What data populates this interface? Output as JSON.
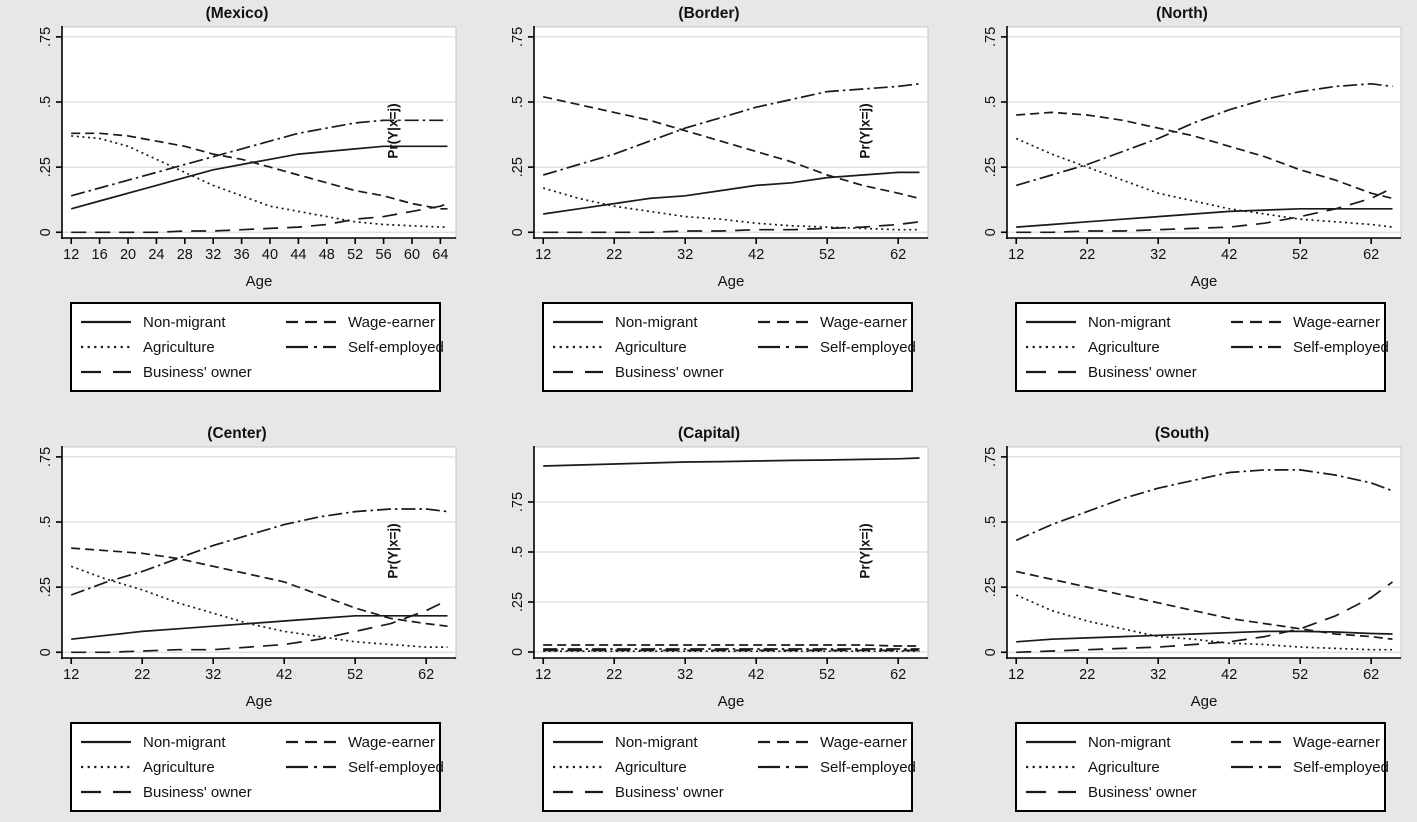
{
  "figure": {
    "background": "#e7e7e7",
    "plot_background": "#ffffff",
    "grid_color": "#dcdcdc",
    "plot_border_color": "#c4c4c4",
    "axis_color": "#000000",
    "line_color": "#1a1a1a",
    "inner_ylabel": "Pr(Y|x=j)",
    "xlabel": "Age"
  },
  "legend": {
    "items": [
      {
        "label": "Non-migrant",
        "style": "solid"
      },
      {
        "label": "Wage-earner",
        "style": "dash"
      },
      {
        "label": "Agriculture",
        "style": "dotted"
      },
      {
        "label": "Self-employed",
        "style": "dashdot"
      },
      {
        "label": "Business' owner",
        "style": "longdash"
      }
    ]
  },
  "chart_data": [
    {
      "type": "line",
      "title": "(Mexico)",
      "xlabel": "Age",
      "x_ticks": [
        12,
        16,
        20,
        24,
        28,
        32,
        36,
        40,
        44,
        48,
        52,
        56,
        60,
        64
      ],
      "xlim": [
        10.7,
        66.2
      ],
      "ylim": [
        -0.022,
        0.788
      ],
      "y_tick_values": [
        0,
        0.25,
        0.5,
        0.75
      ],
      "y_tick_labels": [
        "0",
        ".25",
        ".5",
        ".75"
      ],
      "grid": true,
      "legend_position": "below",
      "show_inner_ylabel": true,
      "x": [
        12,
        16,
        20,
        24,
        28,
        32,
        36,
        40,
        44,
        48,
        52,
        56,
        60,
        64,
        65
      ],
      "series": [
        {
          "name": "Non-migrant",
          "style": "solid",
          "values": [
            0.09,
            0.12,
            0.15,
            0.18,
            0.21,
            0.24,
            0.26,
            0.28,
            0.3,
            0.31,
            0.32,
            0.33,
            0.33,
            0.33,
            0.33
          ]
        },
        {
          "name": "Agriculture",
          "style": "dotted",
          "values": [
            0.37,
            0.36,
            0.33,
            0.28,
            0.23,
            0.18,
            0.14,
            0.1,
            0.08,
            0.06,
            0.04,
            0.03,
            0.025,
            0.02,
            0.02
          ]
        },
        {
          "name": "Business' owner",
          "style": "longdash",
          "values": [
            0.0,
            0.0,
            0.0,
            0.0,
            0.005,
            0.005,
            0.01,
            0.015,
            0.02,
            0.03,
            0.05,
            0.06,
            0.08,
            0.1,
            0.11
          ]
        },
        {
          "name": "Wage-earner",
          "style": "dash",
          "values": [
            0.38,
            0.38,
            0.37,
            0.35,
            0.33,
            0.3,
            0.28,
            0.25,
            0.22,
            0.19,
            0.16,
            0.14,
            0.11,
            0.09,
            0.09
          ]
        },
        {
          "name": "Self-employed",
          "style": "dashdot",
          "values": [
            0.14,
            0.17,
            0.2,
            0.23,
            0.26,
            0.29,
            0.32,
            0.35,
            0.38,
            0.4,
            0.42,
            0.43,
            0.43,
            0.43,
            0.43
          ]
        }
      ]
    },
    {
      "type": "line",
      "title": "(Border)",
      "xlabel": "Age",
      "x_ticks": [
        12,
        22,
        32,
        42,
        52,
        62
      ],
      "xlim": [
        10.7,
        66.2
      ],
      "ylim": [
        -0.022,
        0.788
      ],
      "y_tick_values": [
        0,
        0.25,
        0.5,
        0.75
      ],
      "y_tick_labels": [
        "0",
        ".25",
        ".5",
        ".75"
      ],
      "grid": true,
      "legend_position": "below",
      "show_inner_ylabel": true,
      "x": [
        12,
        17,
        22,
        27,
        32,
        37,
        42,
        47,
        52,
        57,
        62,
        65
      ],
      "series": [
        {
          "name": "Non-migrant",
          "style": "solid",
          "values": [
            0.07,
            0.09,
            0.11,
            0.13,
            0.14,
            0.16,
            0.18,
            0.19,
            0.21,
            0.22,
            0.23,
            0.23
          ]
        },
        {
          "name": "Agriculture",
          "style": "dotted",
          "values": [
            0.17,
            0.13,
            0.1,
            0.08,
            0.06,
            0.05,
            0.035,
            0.025,
            0.02,
            0.015,
            0.01,
            0.01
          ]
        },
        {
          "name": "Business' owner",
          "style": "longdash",
          "values": [
            0.0,
            0.0,
            0.0,
            0.0,
            0.005,
            0.005,
            0.01,
            0.01,
            0.015,
            0.02,
            0.03,
            0.04
          ]
        },
        {
          "name": "Wage-earner",
          "style": "dash",
          "values": [
            0.52,
            0.49,
            0.46,
            0.43,
            0.39,
            0.35,
            0.31,
            0.27,
            0.22,
            0.18,
            0.15,
            0.13
          ]
        },
        {
          "name": "Self-employed",
          "style": "dashdot",
          "values": [
            0.22,
            0.26,
            0.3,
            0.35,
            0.4,
            0.44,
            0.48,
            0.51,
            0.54,
            0.55,
            0.56,
            0.57
          ]
        }
      ]
    },
    {
      "type": "line",
      "title": "(North)",
      "xlabel": "Age",
      "x_ticks": [
        12,
        22,
        32,
        42,
        52,
        62
      ],
      "xlim": [
        10.7,
        66.2
      ],
      "ylim": [
        -0.022,
        0.788
      ],
      "y_tick_values": [
        0,
        0.25,
        0.5,
        0.75
      ],
      "y_tick_labels": [
        "0",
        ".25",
        ".5",
        ".75"
      ],
      "grid": true,
      "legend_position": "below",
      "show_inner_ylabel": false,
      "x": [
        12,
        17,
        22,
        27,
        32,
        37,
        42,
        47,
        52,
        57,
        62,
        65
      ],
      "series": [
        {
          "name": "Non-migrant",
          "style": "solid",
          "values": [
            0.02,
            0.03,
            0.04,
            0.05,
            0.06,
            0.07,
            0.08,
            0.085,
            0.09,
            0.09,
            0.09,
            0.09
          ]
        },
        {
          "name": "Agriculture",
          "style": "dotted",
          "values": [
            0.36,
            0.3,
            0.25,
            0.2,
            0.15,
            0.12,
            0.09,
            0.07,
            0.05,
            0.04,
            0.03,
            0.02
          ]
        },
        {
          "name": "Business' owner",
          "style": "longdash",
          "values": [
            0.0,
            0.0,
            0.005,
            0.005,
            0.01,
            0.015,
            0.02,
            0.035,
            0.06,
            0.09,
            0.13,
            0.17
          ]
        },
        {
          "name": "Wage-earner",
          "style": "dash",
          "values": [
            0.45,
            0.46,
            0.45,
            0.43,
            0.4,
            0.37,
            0.33,
            0.29,
            0.24,
            0.2,
            0.15,
            0.13
          ]
        },
        {
          "name": "Self-employed",
          "style": "dashdot",
          "values": [
            0.18,
            0.22,
            0.26,
            0.31,
            0.36,
            0.42,
            0.47,
            0.51,
            0.54,
            0.56,
            0.57,
            0.56
          ]
        }
      ]
    },
    {
      "type": "line",
      "title": "(Center)",
      "xlabel": "Age",
      "x_ticks": [
        12,
        22,
        32,
        42,
        52,
        62
      ],
      "xlim": [
        10.7,
        66.2
      ],
      "ylim": [
        -0.022,
        0.788
      ],
      "y_tick_values": [
        0,
        0.25,
        0.5,
        0.75
      ],
      "y_tick_labels": [
        "0",
        ".25",
        ".5",
        ".75"
      ],
      "grid": true,
      "legend_position": "below",
      "show_inner_ylabel": true,
      "x": [
        12,
        17,
        22,
        27,
        32,
        37,
        42,
        47,
        52,
        57,
        62,
        65
      ],
      "series": [
        {
          "name": "Non-migrant",
          "style": "solid",
          "values": [
            0.05,
            0.065,
            0.08,
            0.09,
            0.1,
            0.11,
            0.12,
            0.13,
            0.14,
            0.14,
            0.14,
            0.14
          ]
        },
        {
          "name": "Agriculture",
          "style": "dotted",
          "values": [
            0.33,
            0.28,
            0.24,
            0.19,
            0.15,
            0.11,
            0.08,
            0.06,
            0.04,
            0.03,
            0.02,
            0.02
          ]
        },
        {
          "name": "Business' owner",
          "style": "longdash",
          "values": [
            0.0,
            0.0,
            0.005,
            0.01,
            0.01,
            0.02,
            0.03,
            0.05,
            0.08,
            0.11,
            0.16,
            0.2
          ]
        },
        {
          "name": "Wage-earner",
          "style": "dash",
          "values": [
            0.4,
            0.39,
            0.38,
            0.36,
            0.33,
            0.3,
            0.27,
            0.22,
            0.17,
            0.13,
            0.11,
            0.1
          ]
        },
        {
          "name": "Self-employed",
          "style": "dashdot",
          "values": [
            0.22,
            0.27,
            0.31,
            0.36,
            0.41,
            0.45,
            0.49,
            0.52,
            0.54,
            0.55,
            0.55,
            0.54
          ]
        }
      ]
    },
    {
      "type": "line",
      "title": "(Capital)",
      "xlabel": "Age",
      "x_ticks": [
        12,
        22,
        32,
        42,
        52,
        62
      ],
      "xlim": [
        10.7,
        66.2
      ],
      "ylim": [
        -0.03,
        1.025
      ],
      "y_tick_values": [
        0,
        0.25,
        0.5,
        0.75
      ],
      "y_tick_labels": [
        "0",
        ".25",
        ".5",
        ".75"
      ],
      "grid": true,
      "legend_position": "below",
      "show_inner_ylabel": true,
      "x": [
        12,
        17,
        22,
        27,
        32,
        37,
        42,
        47,
        52,
        57,
        62,
        65
      ],
      "series": [
        {
          "name": "Non-migrant",
          "style": "solid",
          "values": [
            0.93,
            0.935,
            0.94,
            0.945,
            0.95,
            0.952,
            0.955,
            0.958,
            0.96,
            0.963,
            0.966,
            0.97
          ]
        },
        {
          "name": "Agriculture",
          "style": "dotted",
          "values": [
            0.004,
            0.004,
            0.004,
            0.004,
            0.004,
            0.004,
            0.004,
            0.004,
            0.004,
            0.004,
            0.004,
            0.004
          ]
        },
        {
          "name": "Business' owner",
          "style": "longdash",
          "values": [
            0.008,
            0.008,
            0.008,
            0.008,
            0.008,
            0.008,
            0.008,
            0.008,
            0.008,
            0.008,
            0.008,
            0.008
          ]
        },
        {
          "name": "Wage-earner",
          "style": "dash",
          "values": [
            0.035,
            0.035,
            0.035,
            0.035,
            0.035,
            0.035,
            0.035,
            0.035,
            0.035,
            0.035,
            0.03,
            0.03
          ]
        },
        {
          "name": "Self-employed",
          "style": "dashdot",
          "values": [
            0.015,
            0.015,
            0.015,
            0.015,
            0.015,
            0.015,
            0.015,
            0.015,
            0.015,
            0.015,
            0.015,
            0.015
          ]
        }
      ]
    },
    {
      "type": "line",
      "title": "(South)",
      "xlabel": "Age",
      "x_ticks": [
        12,
        22,
        32,
        42,
        52,
        62
      ],
      "xlim": [
        10.7,
        66.2
      ],
      "ylim": [
        -0.022,
        0.788
      ],
      "y_tick_values": [
        0,
        0.25,
        0.5,
        0.75
      ],
      "y_tick_labels": [
        "0",
        ".25",
        ".5",
        ".75"
      ],
      "grid": true,
      "legend_position": "below",
      "show_inner_ylabel": false,
      "x": [
        12,
        17,
        22,
        27,
        32,
        37,
        42,
        47,
        52,
        57,
        62,
        65
      ],
      "series": [
        {
          "name": "Non-migrant",
          "style": "solid",
          "values": [
            0.04,
            0.05,
            0.055,
            0.06,
            0.065,
            0.07,
            0.075,
            0.08,
            0.08,
            0.078,
            0.072,
            0.07
          ]
        },
        {
          "name": "Agriculture",
          "style": "dotted",
          "values": [
            0.22,
            0.16,
            0.12,
            0.09,
            0.06,
            0.05,
            0.035,
            0.03,
            0.02,
            0.015,
            0.01,
            0.01
          ]
        },
        {
          "name": "Business' owner",
          "style": "longdash",
          "values": [
            0.0,
            0.005,
            0.01,
            0.015,
            0.02,
            0.03,
            0.04,
            0.06,
            0.09,
            0.14,
            0.21,
            0.27
          ]
        },
        {
          "name": "Wage-earner",
          "style": "dash",
          "values": [
            0.31,
            0.28,
            0.25,
            0.22,
            0.19,
            0.16,
            0.13,
            0.11,
            0.09,
            0.07,
            0.06,
            0.05
          ]
        },
        {
          "name": "Self-employed",
          "style": "dashdot",
          "values": [
            0.43,
            0.49,
            0.54,
            0.59,
            0.63,
            0.66,
            0.69,
            0.7,
            0.7,
            0.68,
            0.65,
            0.62
          ]
        }
      ]
    }
  ]
}
